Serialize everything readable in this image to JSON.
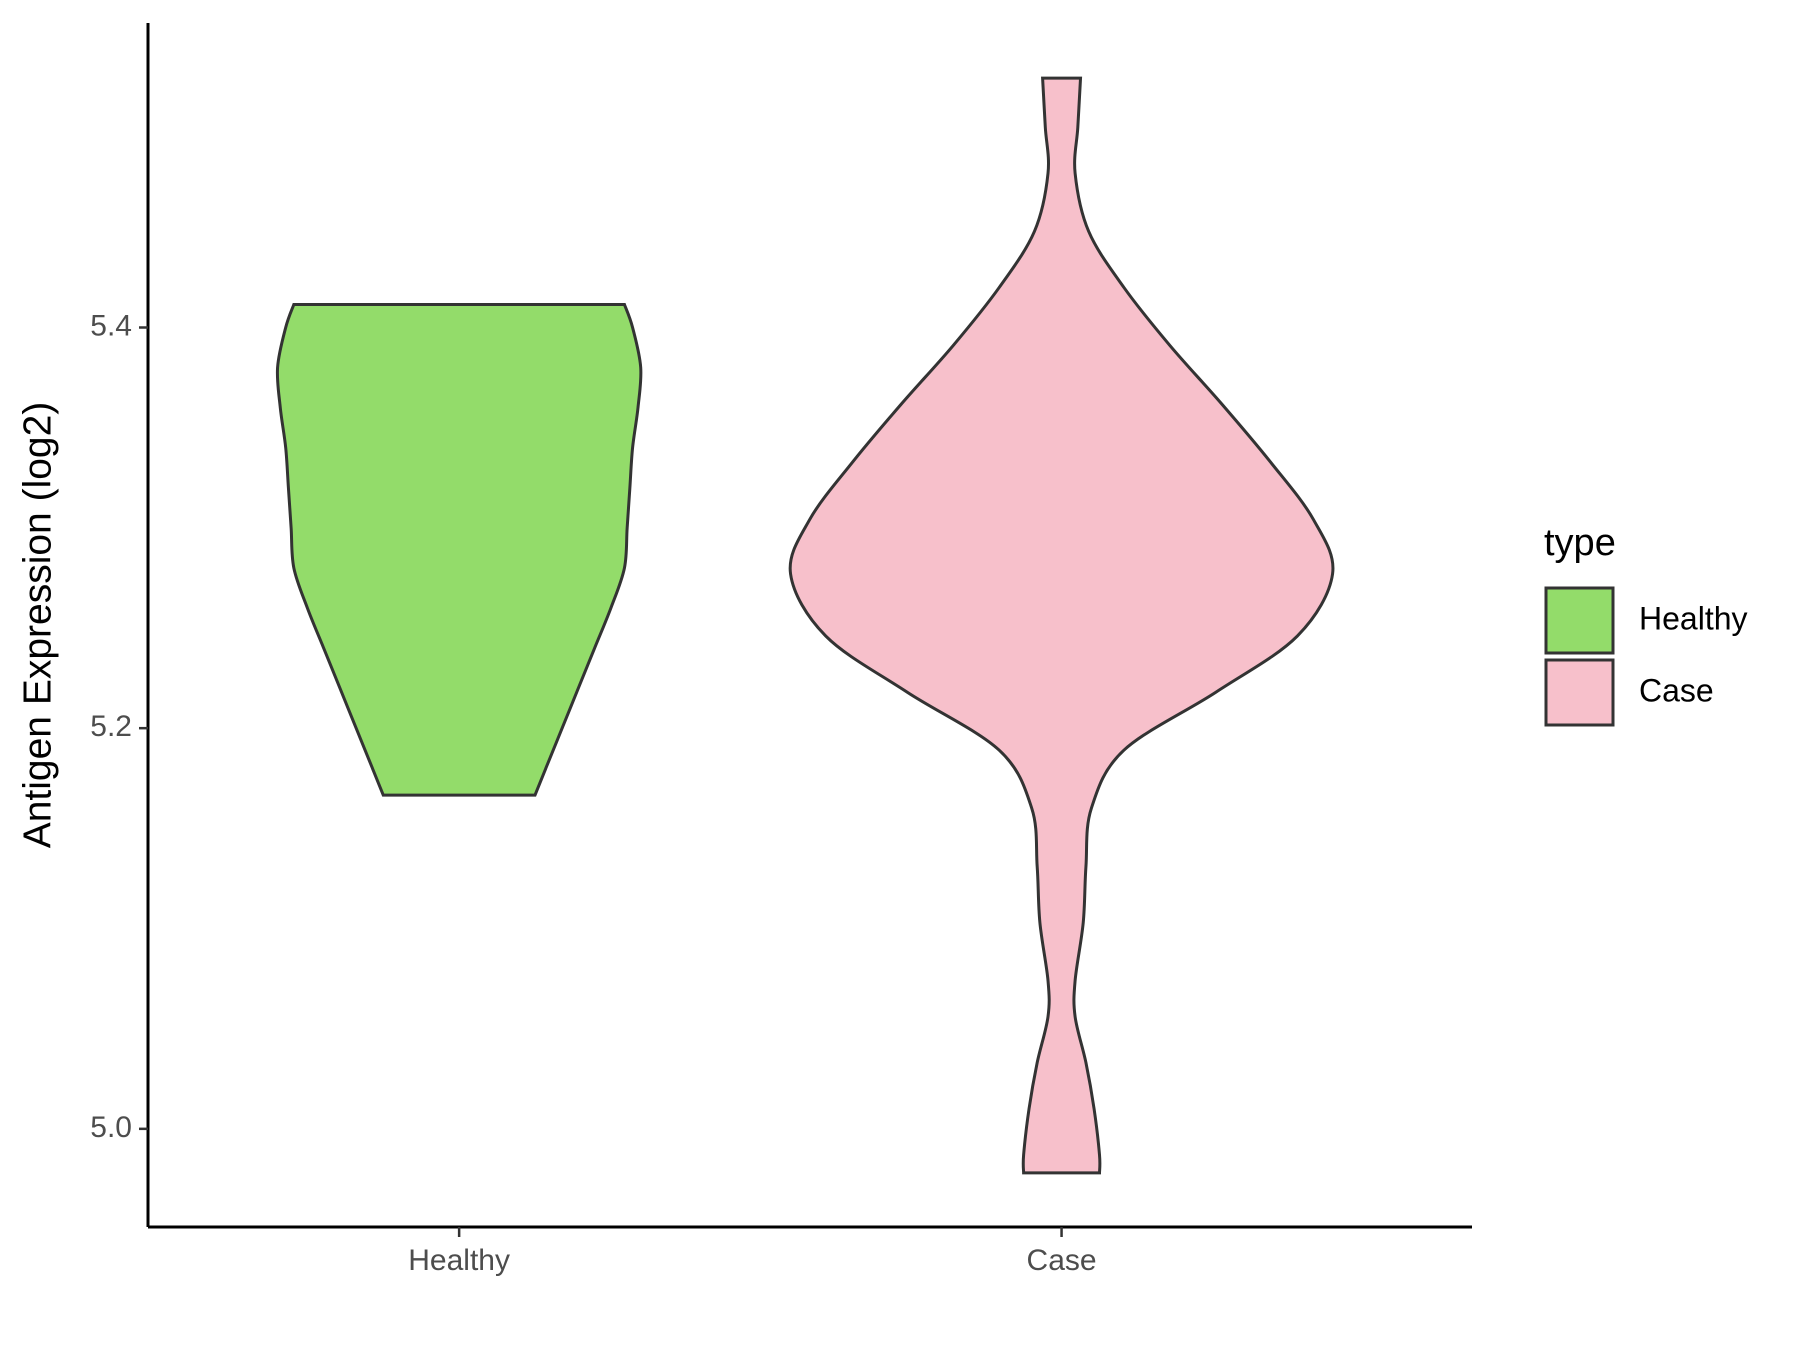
{
  "chart_data": {
    "type": "violin",
    "y_label": "Antigen Expression (log2)",
    "categories": [
      "Healthy",
      "Case"
    ],
    "legend_title": "type",
    "ylim": [
      4.951,
      5.552
    ],
    "yticks": [
      {
        "value": 5,
        "label": "5.0"
      },
      5.2,
      5.4
    ],
    "series": [
      {
        "name": "Healthy",
        "color": "#93dc6a",
        "y": [
          5.4115,
          5.4,
          5.38,
          5.36,
          5.34,
          5.32,
          5.3,
          5.28,
          5.26,
          5.24,
          5.22,
          5.2,
          5.18,
          5.1666
        ],
        "density": [
          0.61,
          0.64,
          0.67,
          0.66,
          0.64,
          0.63,
          0.62,
          0.61,
          0.56,
          0.5,
          0.44,
          0.38,
          0.32,
          0.28
        ]
      },
      {
        "name": "Case",
        "color": "#f7c0cb",
        "y": [
          5.5245,
          5.5,
          5.477,
          5.448,
          5.42,
          5.391,
          5.362,
          5.333,
          5.304,
          5.277,
          5.246,
          5.218,
          5.189,
          5.16,
          5.131,
          5.103,
          5.074,
          5.056,
          5.033,
          5.01,
          4.987,
          4.978
        ],
        "density": [
          0.07,
          0.06,
          0.05,
          0.1,
          0.23,
          0.4,
          0.59,
          0.77,
          0.93,
          1.0,
          0.87,
          0.57,
          0.23,
          0.11,
          0.09,
          0.08,
          0.05,
          0.05,
          0.09,
          0.12,
          0.14,
          0.14
        ]
      }
    ]
  }
}
